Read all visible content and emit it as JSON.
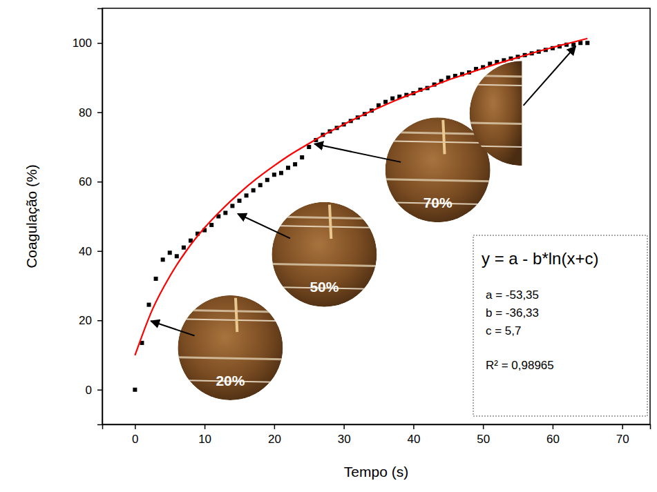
{
  "chart_data": {
    "type": "scatter",
    "x_label": "Tempo (s)",
    "y_label": "Coagulação (%)",
    "xlim": [
      -4.7,
      74
    ],
    "ylim": [
      -10,
      110
    ],
    "xticks": [
      0,
      10,
      20,
      30,
      40,
      50,
      60,
      70
    ],
    "yticks": [
      0,
      20,
      40,
      60,
      80,
      100
    ],
    "grid": false,
    "series": [
      {
        "type": "scatter",
        "marker": "square",
        "color": "#000000",
        "x": [
          0,
          1,
          2,
          3,
          4,
          5,
          6,
          7,
          8,
          9,
          10,
          11,
          12,
          13,
          14,
          15,
          16,
          17,
          18,
          19,
          20,
          21,
          22,
          23,
          24,
          25,
          26,
          27,
          28,
          29,
          30,
          31,
          32,
          33,
          34,
          35,
          36,
          37,
          38,
          39,
          40,
          41,
          42,
          43,
          44,
          45,
          46,
          47,
          48,
          49,
          50,
          51,
          52,
          53,
          54,
          55,
          56,
          57,
          58,
          59,
          60,
          61,
          62,
          63,
          64,
          65
        ],
        "values": [
          0,
          13.5,
          24.5,
          32,
          37.5,
          39.5,
          38.5,
          41,
          43,
          45,
          46,
          47.5,
          50,
          51,
          53,
          54.5,
          56,
          57.5,
          59,
          60.5,
          62,
          62.5,
          64,
          65,
          67,
          70,
          72,
          73.5,
          74.5,
          75.5,
          76.5,
          77.5,
          78.5,
          79.5,
          80.5,
          82,
          83,
          84,
          84.5,
          85,
          85.5,
          86.5,
          87,
          88,
          89,
          90,
          90.5,
          91,
          91.5,
          92.5,
          93,
          94,
          94.5,
          95,
          95.5,
          96,
          96.5,
          97,
          97.5,
          98,
          98.5,
          99,
          99.5,
          99.5,
          100,
          100
        ]
      },
      {
        "type": "line",
        "line_style": "solid",
        "color": "#ff0000",
        "x": [
          0,
          2.5,
          5,
          7.5,
          10,
          12.5,
          15,
          17.5,
          20,
          22.5,
          25,
          27.5,
          30,
          32.5,
          35,
          37.5,
          40,
          42.5,
          45,
          47.5,
          50,
          52.5,
          55,
          57.5,
          60,
          62.5,
          65
        ],
        "values": [
          9.9,
          23.1,
          32.7,
          40.4,
          46.7,
          52,
          56.7,
          60.9,
          64.6,
          68,
          71,
          73.9,
          76.5,
          79,
          81.3,
          83.5,
          85.5,
          87.4,
          89.3,
          91,
          92.7,
          94.3,
          95.8,
          97.3,
          98.7,
          100,
          101.3
        ]
      }
    ],
    "annotations": [
      {
        "text": "20%",
        "x": 2,
        "y": 20
      },
      {
        "text": "50%",
        "x": 14.5,
        "y": 51
      },
      {
        "text": "70%",
        "x": 25.5,
        "y": 71
      },
      {
        "x": 63.5,
        "y": 99.5
      }
    ],
    "equation_box": [
      "y = a - b*ln(x+c)",
      "a = -53,35",
      "b = -36,33",
      "c = 5,7",
      "R² = 0,98965"
    ]
  }
}
